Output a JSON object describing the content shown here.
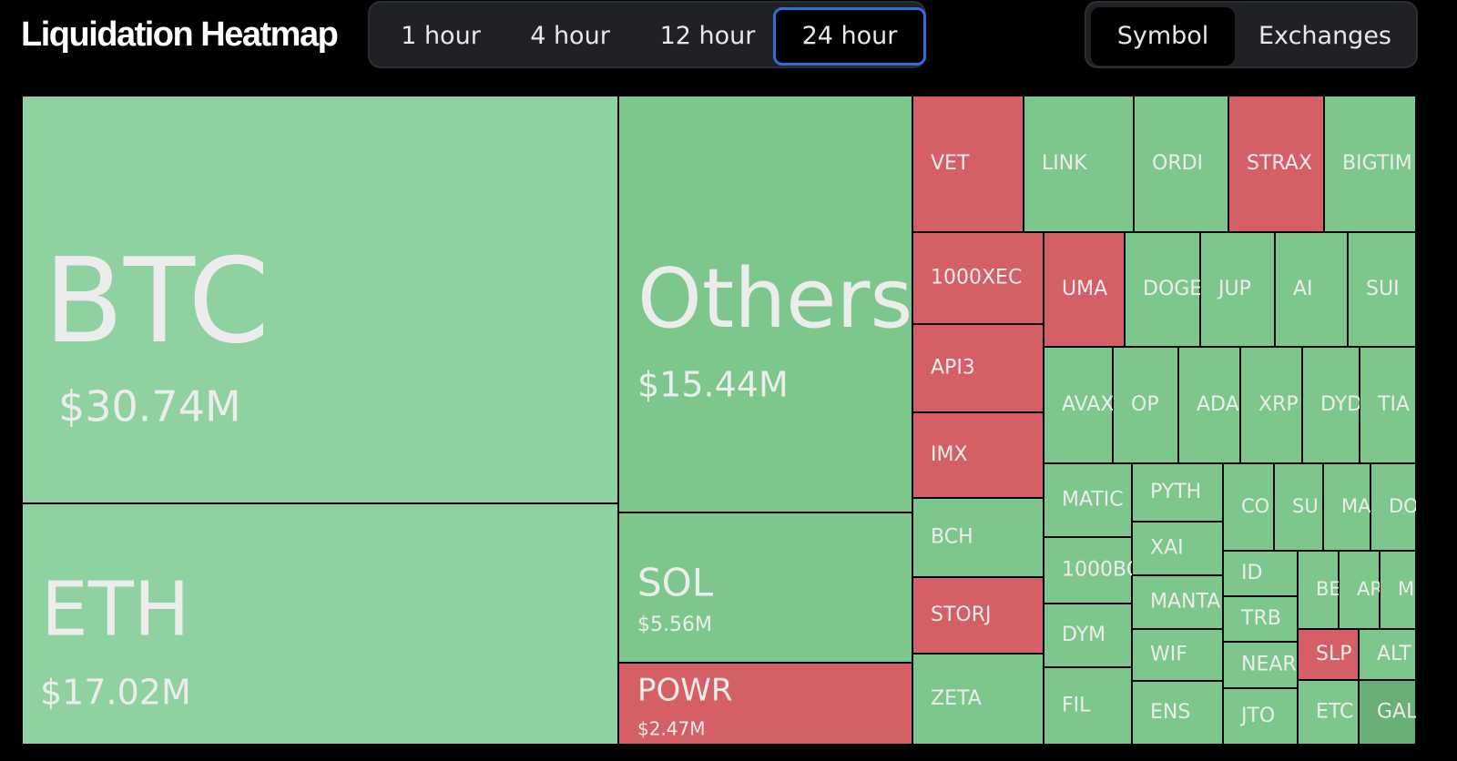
{
  "header": {
    "title": "Liquidation Heatmap",
    "timeframes": [
      "1 hour",
      "4 hour",
      "12 hour",
      "24 hour"
    ],
    "active_timeframe": "24 hour",
    "groupings": [
      "Symbol",
      "Exchanges"
    ],
    "active_grouping": "Symbol"
  },
  "colors": {
    "long_liquidated": "#7ec78c",
    "short_liquidated": "#d45f64",
    "large_tile": "#8fd1a0",
    "background": "#000000",
    "focus_ring": "#2f6fd8"
  },
  "chart_data": {
    "type": "heatmap",
    "title": "Liquidation Heatmap",
    "timeframe": "24 hour",
    "cells": [
      {
        "symbol": "BTC",
        "value": "$30.74M",
        "amount_musd": 30.74,
        "side": "long"
      },
      {
        "symbol": "ETH",
        "value": "$17.02M",
        "amount_musd": 17.02,
        "side": "long"
      },
      {
        "symbol": "Others",
        "value": "$15.44M",
        "amount_musd": 15.44,
        "side": "long"
      },
      {
        "symbol": "SOL",
        "value": "$5.56M",
        "amount_musd": 5.56,
        "side": "long"
      },
      {
        "symbol": "POWR",
        "value": "$2.47M",
        "amount_musd": 2.47,
        "side": "short"
      },
      {
        "symbol": "VET",
        "value": "",
        "side": "short"
      },
      {
        "symbol": "LINK",
        "value": "",
        "side": "long"
      },
      {
        "symbol": "ORDI",
        "value": "",
        "side": "long"
      },
      {
        "symbol": "STRAX",
        "value": "",
        "side": "short"
      },
      {
        "symbol": "BIGTIM",
        "value": "",
        "side": "long"
      },
      {
        "symbol": "1000XEC",
        "value": "",
        "side": "short"
      },
      {
        "symbol": "API3",
        "value": "",
        "side": "short"
      },
      {
        "symbol": "IMX",
        "value": "",
        "side": "short"
      },
      {
        "symbol": "BCH",
        "value": "",
        "side": "long"
      },
      {
        "symbol": "STORJ",
        "value": "",
        "side": "short"
      },
      {
        "symbol": "ZETA",
        "value": "",
        "side": "long"
      },
      {
        "symbol": "UMA",
        "value": "",
        "side": "short"
      },
      {
        "symbol": "DOGE",
        "value": "",
        "side": "long"
      },
      {
        "symbol": "JUP",
        "value": "",
        "side": "long"
      },
      {
        "symbol": "AI",
        "value": "",
        "side": "long"
      },
      {
        "symbol": "SUI",
        "value": "",
        "side": "long"
      },
      {
        "symbol": "AVAX",
        "value": "",
        "side": "long"
      },
      {
        "symbol": "OP",
        "value": "",
        "side": "long"
      },
      {
        "symbol": "ADA",
        "value": "",
        "side": "long"
      },
      {
        "symbol": "XRP",
        "value": "",
        "side": "long"
      },
      {
        "symbol": "DYD",
        "value": "",
        "side": "long"
      },
      {
        "symbol": "TIA",
        "value": "",
        "side": "long"
      },
      {
        "symbol": "MATIC",
        "value": "",
        "side": "long"
      },
      {
        "symbol": "1000BC",
        "value": "",
        "side": "long"
      },
      {
        "symbol": "DYM",
        "value": "",
        "side": "long"
      },
      {
        "symbol": "FIL",
        "value": "",
        "side": "long"
      },
      {
        "symbol": "PYTH",
        "value": "",
        "side": "long"
      },
      {
        "symbol": "XAI",
        "value": "",
        "side": "long"
      },
      {
        "symbol": "MANTA",
        "value": "",
        "side": "long"
      },
      {
        "symbol": "WIF",
        "value": "",
        "side": "long"
      },
      {
        "symbol": "ENS",
        "value": "",
        "side": "long"
      },
      {
        "symbol": "CO",
        "value": "",
        "side": "long"
      },
      {
        "symbol": "SU",
        "value": "",
        "side": "long"
      },
      {
        "symbol": "MA",
        "value": "",
        "side": "long"
      },
      {
        "symbol": "DO",
        "value": "",
        "side": "long"
      },
      {
        "symbol": "ID",
        "value": "",
        "side": "long"
      },
      {
        "symbol": "TRB",
        "value": "",
        "side": "long"
      },
      {
        "symbol": "NEAR",
        "value": "",
        "side": "long"
      },
      {
        "symbol": "JTO",
        "value": "",
        "side": "long"
      },
      {
        "symbol": "BE",
        "value": "",
        "side": "long"
      },
      {
        "symbol": "AR",
        "value": "",
        "side": "long"
      },
      {
        "symbol": "M",
        "value": "",
        "side": "long"
      },
      {
        "symbol": "SLP",
        "value": "",
        "side": "short"
      },
      {
        "symbol": "ALT",
        "value": "",
        "side": "long"
      },
      {
        "symbol": "ETC",
        "value": "",
        "side": "long"
      },
      {
        "symbol": "GAL",
        "value": "",
        "side": "long"
      }
    ]
  }
}
